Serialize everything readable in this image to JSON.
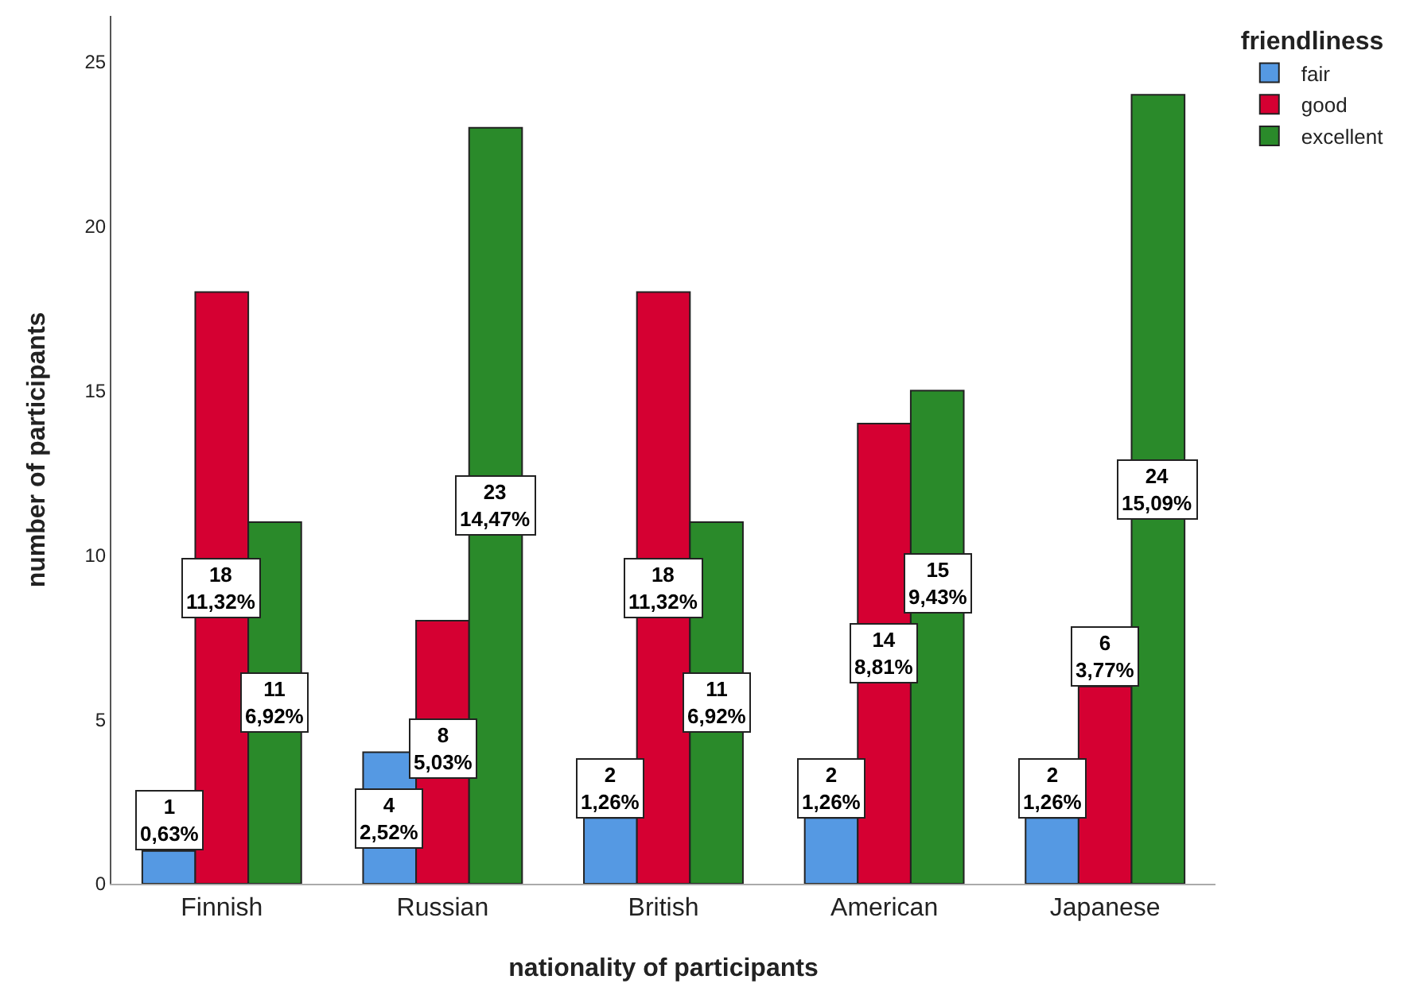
{
  "chart_data": {
    "type": "bar",
    "xlabel": "nationality of participants",
    "ylabel": "number of participants",
    "legend_title": "friendliness",
    "categories": [
      "Finnish",
      "Russian",
      "British",
      "American",
      "Japanese"
    ],
    "series": [
      {
        "name": "fair",
        "color": "#5599e3",
        "values": [
          1,
          4,
          2,
          2,
          2
        ],
        "value_labels": [
          "1\n0,63%",
          "4\n2,52%",
          "2\n1,26%",
          "2\n1,26%",
          "2\n1,26%"
        ]
      },
      {
        "name": "good",
        "color": "#d50032",
        "values": [
          18,
          8,
          18,
          14,
          6
        ],
        "value_labels": [
          "18\n11,32%",
          "8\n5,03%",
          "18\n11,32%",
          "14\n8,81%",
          "6\n3,77%"
        ]
      },
      {
        "name": "excellent",
        "color": "#2a8a2a",
        "values": [
          11,
          23,
          11,
          15,
          24
        ],
        "value_labels": [
          "11\n6,92%",
          "23\n14,47%",
          "11\n6,92%",
          "15\n9,43%",
          "24\n15,09%"
        ]
      }
    ],
    "ylim": [
      0,
      26.4
    ],
    "yticks": [
      0,
      5,
      10,
      15,
      20,
      25
    ],
    "grid": false,
    "legend": "top right"
  }
}
